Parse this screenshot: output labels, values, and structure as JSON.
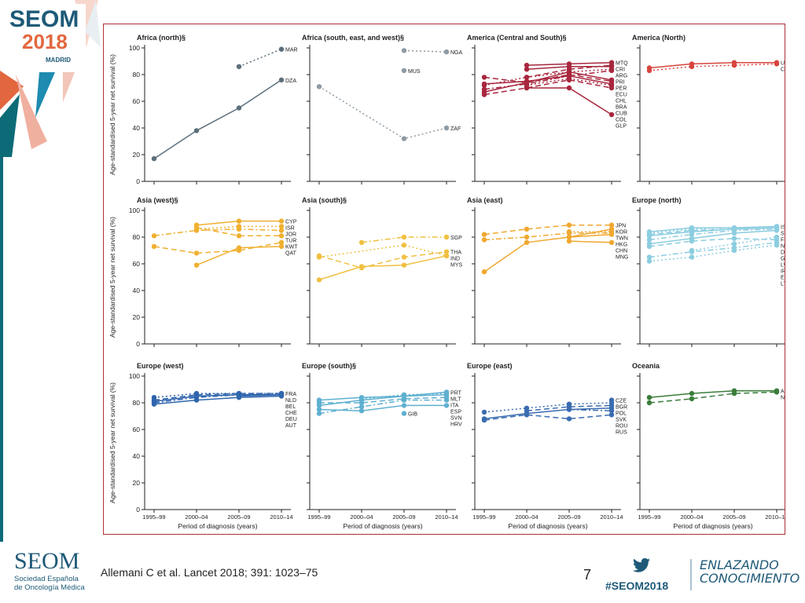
{
  "branding": {
    "logo_top_line1": "SEOM",
    "logo_top_line2": "2018",
    "logo_top_line3": "MADRID",
    "logo_bottom": "SEOM",
    "logo_bottom_sub1": "Sociedad Española",
    "logo_bottom_sub2": "de Oncología Médica",
    "hashtag": "#SEOM2018",
    "tagline1": "ENLAZANDO",
    "tagline2": "CONOCIMIENTO",
    "accent": "#1e5a78",
    "frame_color": "#b03038"
  },
  "footer": {
    "citation": "Allemani C et al. Lancet 2018; 391: 1023–75",
    "page_number": "7"
  },
  "chart_data": {
    "type": "line",
    "ylabel": "Age-standardised 5-year net survival (%)",
    "xlabel": "Period of diagnosis (years)",
    "x": [
      "1995–99",
      "2000–04",
      "2005–09",
      "2010–14"
    ],
    "ylim": [
      0,
      100
    ],
    "yticks": [
      0,
      20,
      40,
      60,
      80,
      100
    ],
    "grid": false,
    "panels": [
      {
        "title": "Africa (north)§",
        "color": "#5c6f7b",
        "series": [
          {
            "name": "MAR",
            "dash": "dotted",
            "values": [
              null,
              null,
              86,
              99
            ]
          },
          {
            "name": "DZA",
            "dash": "solid",
            "values": [
              17,
              38,
              55,
              76
            ]
          }
        ]
      },
      {
        "title": "Africa (south, east, and west)§",
        "color": "#8e9aa4",
        "series": [
          {
            "name": "NGA",
            "dash": "dotted",
            "values": [
              null,
              null,
              98,
              97
            ]
          },
          {
            "name": "MUS",
            "dash": "solid",
            "values": [
              null,
              null,
              83,
              null
            ]
          },
          {
            "name": "ZAF",
            "dash": "dotted",
            "values": [
              71,
              null,
              32,
              40
            ]
          }
        ]
      },
      {
        "title": "America (Central and South)§",
        "color": "#a8273e",
        "series": [
          {
            "name": "MTQ",
            "dash": "solid",
            "values": [
              null,
              87,
              88,
              89
            ]
          },
          {
            "name": "CRI",
            "dash": "dashed",
            "values": [
              null,
              78,
              84,
              87
            ]
          },
          {
            "name": "ARG",
            "dash": "solid",
            "values": [
              null,
              84,
              86,
              86
            ]
          },
          {
            "name": "PRI",
            "dash": "dotted",
            "values": [
              72,
              78,
              82,
              84
            ]
          },
          {
            "name": "PER",
            "dash": "dashdot",
            "values": [
              69,
              73,
              79,
              83
            ]
          },
          {
            "name": "ECU",
            "dash": "solid",
            "values": [
              67,
              74,
              82,
              76
            ]
          },
          {
            "name": "CHL",
            "dash": "dashed",
            "values": [
              78,
              74,
              80,
              75
            ]
          },
          {
            "name": "BRA",
            "dash": "solid",
            "values": [
              73,
              75,
              79,
              73
            ]
          },
          {
            "name": "CUB",
            "dash": "dotted",
            "values": [
              null,
              72,
              77,
              72
            ]
          },
          {
            "name": "COL",
            "dash": "dashed",
            "values": [
              65,
              70,
              76,
              70
            ]
          },
          {
            "name": "GLP",
            "dash": "solid",
            "values": [
              null,
              70,
              70,
              50
            ]
          }
        ]
      },
      {
        "title": "America (North)",
        "color": "#d8453e",
        "series": [
          {
            "name": "USA",
            "dash": "solid",
            "values": [
              85,
              88,
              89,
              89
            ]
          },
          {
            "name": "CAN",
            "dash": "dotted",
            "values": [
              83,
              86,
              87,
              88
            ]
          }
        ]
      },
      {
        "title": "Asia (west)§",
        "color": "#f0b030",
        "series": [
          {
            "name": "CYP",
            "dash": "solid",
            "values": [
              null,
              89,
              92,
              92
            ]
          },
          {
            "name": "ISR",
            "dash": "dotted",
            "values": [
              null,
              86,
              88,
              88
            ]
          },
          {
            "name": "JOR",
            "dash": "dashdot",
            "values": [
              81,
              85,
              86,
              85
            ]
          },
          {
            "name": "TUR",
            "dash": "dashed",
            "values": [
              null,
              87,
              81,
              81
            ]
          },
          {
            "name": "KWT",
            "dash": "dashed",
            "values": [
              73,
              68,
              70,
              76
            ]
          },
          {
            "name": "QAT",
            "dash": "solid",
            "values": [
              null,
              59,
              72,
              73
            ]
          }
        ]
      },
      {
        "title": "Asia (south)§",
        "color": "#f0c040",
        "series": [
          {
            "name": "SGP",
            "dash": "dashdot",
            "values": [
              null,
              76,
              80,
              80
            ]
          },
          {
            "name": "THA",
            "dash": "dashed",
            "values": [
              66,
              57,
              65,
              69
            ]
          },
          {
            "name": "IND",
            "dash": "dotted",
            "values": [
              65,
              null,
              74,
              66
            ]
          },
          {
            "name": "MYS",
            "dash": "solid",
            "values": [
              48,
              58,
              59,
              66
            ]
          }
        ]
      },
      {
        "title": "Asia (east)",
        "color": "#f0a830",
        "series": [
          {
            "name": "JPN",
            "dash": "dashed",
            "values": [
              82,
              86,
              89,
              89
            ]
          },
          {
            "name": "KOR",
            "dash": "solid",
            "values": [
              null,
              null,
              80,
              86
            ]
          },
          {
            "name": "TWN",
            "dash": "dotted",
            "values": [
              null,
              null,
              84,
              84
            ]
          },
          {
            "name": "HKG",
            "dash": "dashdot",
            "values": [
              78,
              80,
              83,
              83
            ]
          },
          {
            "name": "CHN",
            "dash": "solid",
            "values": [
              54,
              76,
              80,
              82
            ]
          },
          {
            "name": "MNG",
            "dash": "solid",
            "values": [
              null,
              null,
              77,
              76
            ]
          }
        ]
      },
      {
        "title": "Europe (north)",
        "color": "#8ccde0",
        "series": [
          {
            "name": "ISL",
            "dash": "solid",
            "values": [
              84,
              87,
              87,
              88
            ]
          },
          {
            "name": "SWE",
            "dash": "dotted",
            "values": [
              83,
              86,
              87,
              88
            ]
          },
          {
            "name": "FIN",
            "dash": "dashed",
            "values": [
              82,
              85,
              86,
              87
            ]
          },
          {
            "name": "NOR",
            "dash": "solid",
            "values": [
              81,
              84,
              86,
              87
            ]
          },
          {
            "name": "DNK",
            "dash": "dashdot",
            "values": [
              78,
              82,
              85,
              86
            ]
          },
          {
            "name": "GBR",
            "dash": "solid",
            "values": [
              75,
              79,
              83,
              85
            ]
          },
          {
            "name": "LVA",
            "dash": "dotted",
            "values": [
              null,
              70,
              75,
              80
            ]
          },
          {
            "name": "IRL",
            "dash": "dashed",
            "values": [
              73,
              77,
              79,
              78
            ]
          },
          {
            "name": "EST",
            "dash": "dashdot",
            "values": [
              65,
              69,
              72,
              76
            ]
          },
          {
            "name": "LTU",
            "dash": "dotted",
            "values": [
              62,
              65,
              70,
              74
            ]
          }
        ]
      },
      {
        "title": "Europe (west)",
        "color": "#2f65ad",
        "series": [
          {
            "name": "FRA",
            "dash": "dotted",
            "values": [
              84,
              87,
              87,
              87
            ]
          },
          {
            "name": "NLD",
            "dash": "dashed",
            "values": [
              82,
              86,
              87,
              87
            ]
          },
          {
            "name": "BEL",
            "dash": "solid",
            "values": [
              81,
              85,
              86,
              86
            ]
          },
          {
            "name": "CHE",
            "dash": "dashdot",
            "values": [
              80,
              84,
              86,
              86
            ]
          },
          {
            "name": "DEU",
            "dash": "solid",
            "values": [
              null,
              null,
              85,
              86
            ]
          },
          {
            "name": "AUT",
            "dash": "solid",
            "values": [
              79,
              82,
              84,
              85
            ]
          }
        ]
      },
      {
        "title": "Europe (south)§",
        "color": "#5fb0d0",
        "series": [
          {
            "name": "PRT",
            "dash": "solid",
            "values": [
              82,
              84,
              85,
              88
            ]
          },
          {
            "name": "MLT",
            "dash": "dotted",
            "values": [
              null,
              83,
              86,
              87
            ]
          },
          {
            "name": "ITA",
            "dash": "solid",
            "values": [
              78,
              82,
              85,
              86
            ]
          },
          {
            "name": "ESP",
            "dash": "dashed",
            "values": [
              80,
              80,
              83,
              84
            ]
          },
          {
            "name": "SVN",
            "dash": "dashdot",
            "values": [
              72,
              77,
              82,
              82
            ]
          },
          {
            "name": "HRV",
            "dash": "solid",
            "values": [
              75,
              74,
              78,
              78
            ]
          },
          {
            "name": "GIB",
            "dash": "solid",
            "values": [
              null,
              null,
              72,
              null
            ]
          }
        ]
      },
      {
        "title": "Europe (east)",
        "color": "#3a6cb0",
        "series": [
          {
            "name": "CZE",
            "dash": "solid",
            "values": [
              null,
              null,
              null,
              82
            ]
          },
          {
            "name": "BGR",
            "dash": "dotted",
            "values": [
              73,
              76,
              79,
              80
            ]
          },
          {
            "name": "POL",
            "dash": "dashed",
            "values": [
              null,
              74,
              77,
              78
            ]
          },
          {
            "name": "SVK",
            "dash": "solid",
            "values": [
              68,
              72,
              75,
              76
            ]
          },
          {
            "name": "ROU",
            "dash": "dashdot",
            "values": [
              null,
              null,
              75,
              74
            ]
          },
          {
            "name": "RUS",
            "dash": "dashed",
            "values": [
              67,
              71,
              68,
              71
            ]
          }
        ]
      },
      {
        "title": "Oceania",
        "color": "#3a7d3a",
        "series": [
          {
            "name": "AUS",
            "dash": "solid",
            "values": [
              84,
              87,
              89,
              89
            ]
          },
          {
            "name": "NZL",
            "dash": "dashed",
            "values": [
              80,
              83,
              87,
              88
            ]
          }
        ]
      }
    ]
  }
}
